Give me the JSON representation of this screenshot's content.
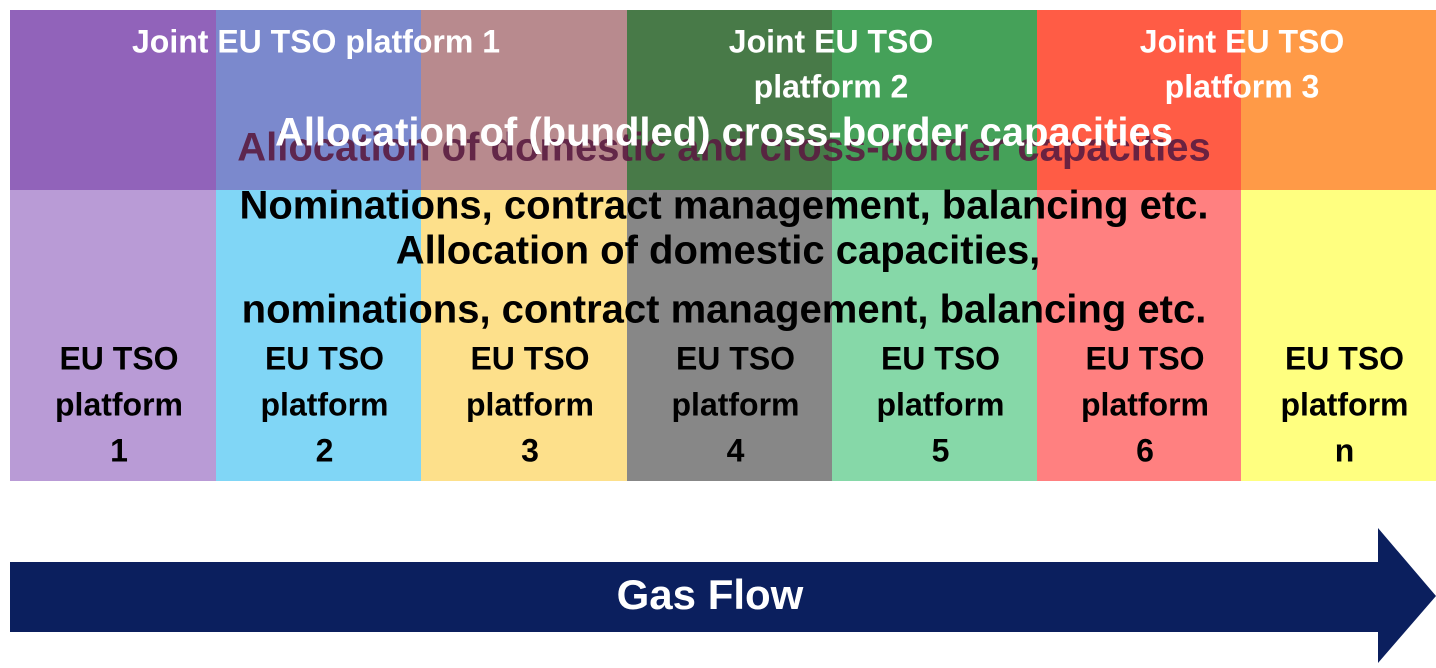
{
  "joint_platforms": [
    {
      "lines": [
        "Joint EU TSO platform 1"
      ]
    },
    {
      "lines": [
        "Joint EU TSO",
        "platform 2"
      ]
    },
    {
      "lines": [
        "Joint EU TSO",
        "platform 3"
      ]
    }
  ],
  "layers": {
    "domestic_and_cross_border": "Allocation of domestic and cross-border capacities",
    "bundled": "Allocation of (bundled) cross-border capacities",
    "nominations_top": "Nominations, contract management, balancing etc.",
    "domestic": "Allocation of domestic capacities,",
    "nominations_bottom": "nominations, contract management, balancing etc."
  },
  "platforms": [
    {
      "lines": [
        "EU TSO",
        "platform",
        "1"
      ]
    },
    {
      "lines": [
        "EU TSO",
        "platform",
        "2"
      ]
    },
    {
      "lines": [
        "EU TSO",
        "platform",
        "3"
      ]
    },
    {
      "lines": [
        "EU TSO",
        "platform",
        "4"
      ]
    },
    {
      "lines": [
        "EU TSO",
        "platform",
        "5"
      ]
    },
    {
      "lines": [
        "EU TSO",
        "platform",
        "6"
      ]
    },
    {
      "lines": [
        "EU TSO",
        "platform",
        "n"
      ]
    }
  ],
  "flow_label": "Gas Flow"
}
